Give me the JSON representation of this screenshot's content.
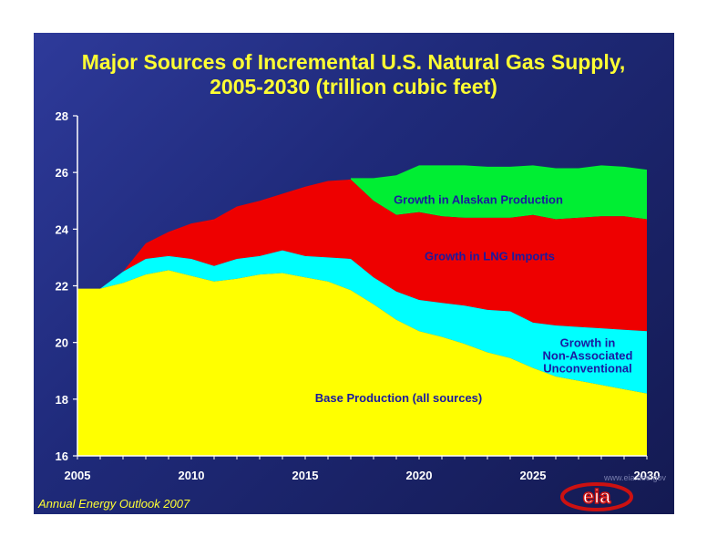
{
  "chart_data": {
    "type": "area",
    "title_lines": [
      "Major Sources of Incremental U.S. Natural Gas Supply,",
      "2005-2030 (trillion cubic feet)"
    ],
    "xlim": [
      2005,
      2030
    ],
    "ylim": [
      16,
      28
    ],
    "y_ticks": [
      16,
      18,
      20,
      22,
      24,
      26,
      28
    ],
    "x_ticks": [
      2005,
      2010,
      2015,
      2020,
      2025,
      2030
    ],
    "grid": false,
    "stacking": "cumulative",
    "x": [
      2005,
      2006,
      2007,
      2008,
      2009,
      2010,
      2011,
      2012,
      2013,
      2014,
      2015,
      2016,
      2017,
      2018,
      2019,
      2020,
      2021,
      2022,
      2023,
      2024,
      2025,
      2026,
      2027,
      2028,
      2029,
      2030
    ],
    "series": [
      {
        "name": "Growth in Alaskan Production",
        "color": "#00ee33",
        "label_lines": [
          "Growth in Alaskan Production"
        ],
        "top": [
          null,
          null,
          null,
          null,
          null,
          null,
          null,
          null,
          null,
          null,
          null,
          null,
          25.8,
          25.8,
          25.9,
          26.25,
          26.25,
          26.25,
          26.2,
          26.2,
          26.25,
          26.15,
          26.15,
          26.25,
          26.2,
          26.1
        ]
      },
      {
        "name": "Growth in LNG Imports",
        "color": "#ee0000",
        "label_lines": [
          "Growth in LNG Imports"
        ],
        "top": [
          21.9,
          21.9,
          22.5,
          23.5,
          23.9,
          24.2,
          24.35,
          24.8,
          25.0,
          25.25,
          25.5,
          25.7,
          25.75,
          25.0,
          24.5,
          24.6,
          24.45,
          24.4,
          24.4,
          24.4,
          24.5,
          24.35,
          24.4,
          24.45,
          24.45,
          24.35
        ]
      },
      {
        "name": "Growth in Non-Associated Unconventional",
        "color": "#00ffff",
        "label_lines": [
          "Growth in",
          "Non-Associated",
          "Unconventional"
        ],
        "top": [
          21.9,
          21.9,
          22.5,
          22.95,
          23.05,
          22.95,
          22.7,
          22.95,
          23.05,
          23.25,
          23.05,
          23.0,
          22.95,
          22.3,
          21.8,
          21.5,
          21.4,
          21.3,
          21.15,
          21.1,
          20.7,
          20.6,
          20.55,
          20.5,
          20.45,
          20.4
        ]
      },
      {
        "name": "Base Production (all sources)",
        "color": "#ffff00",
        "label_lines": [
          "Base Production (all sources)"
        ],
        "top": [
          21.9,
          21.9,
          22.1,
          22.4,
          22.55,
          22.35,
          22.15,
          22.25,
          22.4,
          22.45,
          22.3,
          22.15,
          21.85,
          21.35,
          20.8,
          20.4,
          20.2,
          19.95,
          19.65,
          19.45,
          19.1,
          18.8,
          18.65,
          18.5,
          18.35,
          18.2
        ]
      }
    ]
  },
  "footer": "Annual Energy Outlook 2007",
  "logo": {
    "text": "eia",
    "url": "www.eia.doe.gov"
  }
}
